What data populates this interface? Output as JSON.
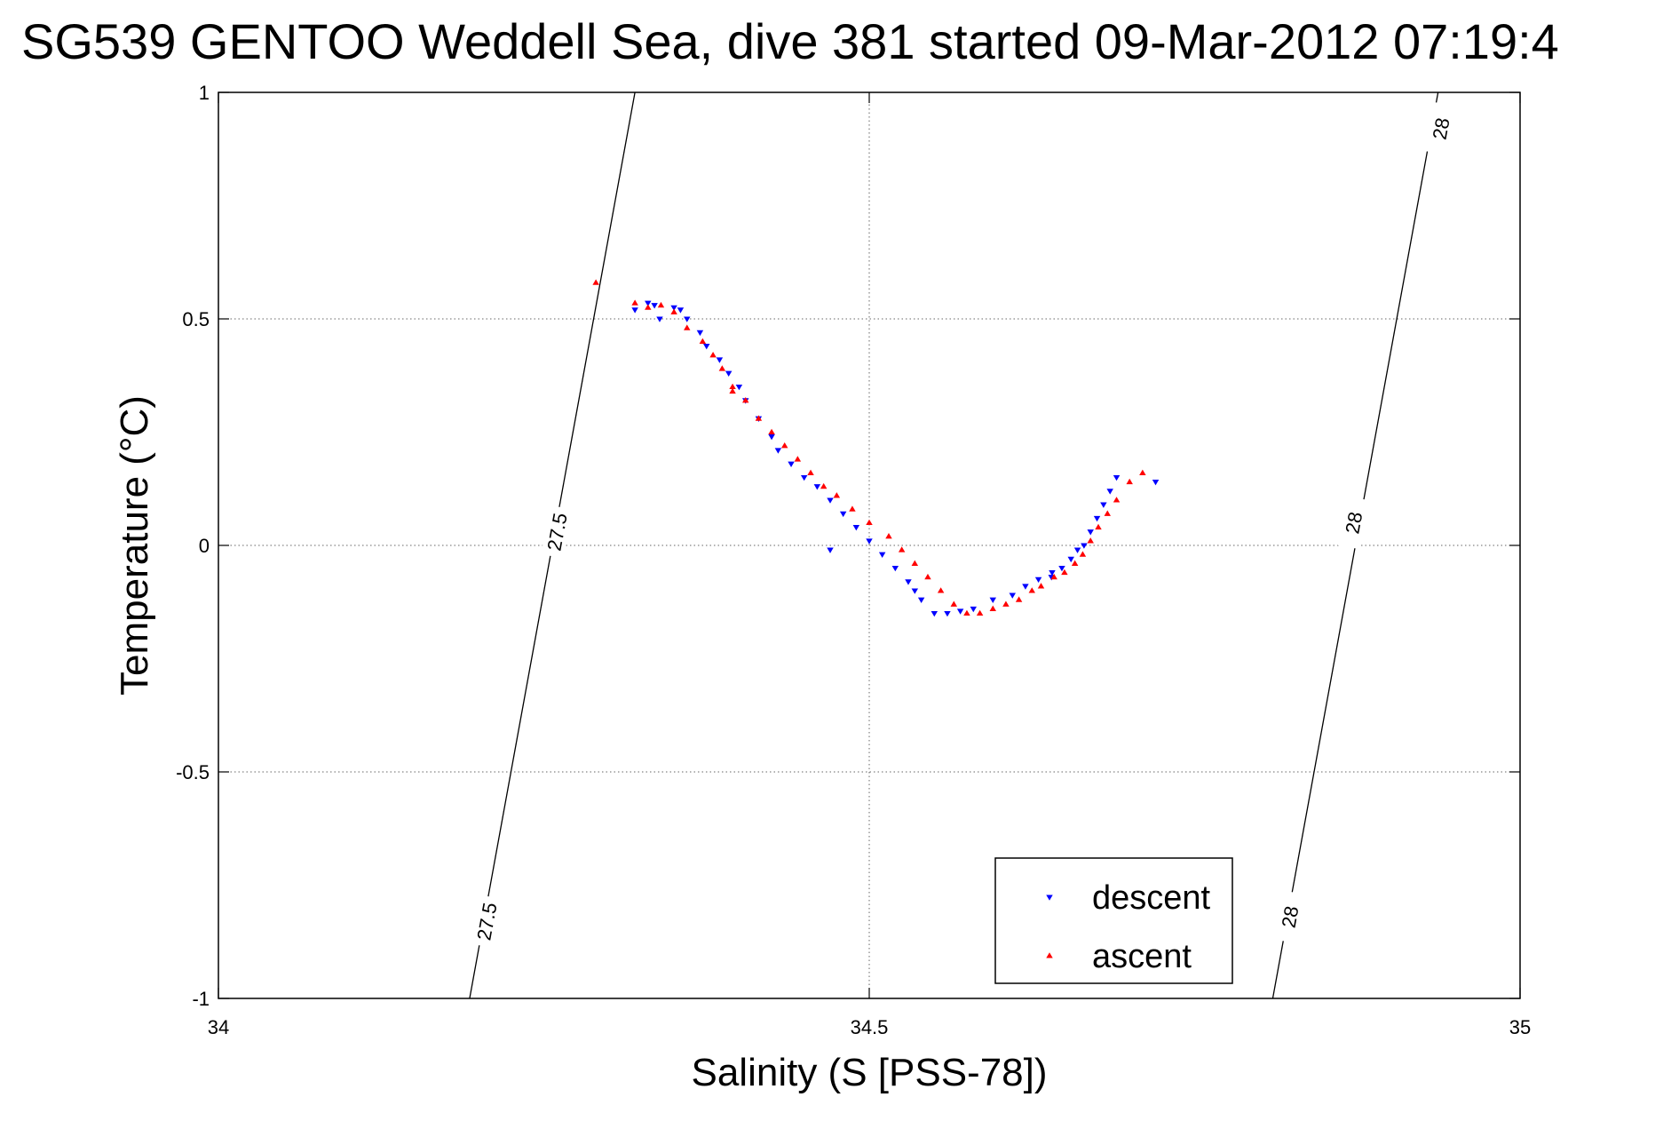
{
  "chart_data": {
    "type": "scatter",
    "title": "SG539 GENTOO Weddell Sea, dive 381 started 09-Mar-2012 07:19:4",
    "xlabel": "Salinity (S [PSS-78])",
    "ylabel": "Temperature (°C)",
    "xlim": [
      34,
      35
    ],
    "ylim": [
      -1,
      1
    ],
    "x_ticks": [
      34,
      34.5,
      35
    ],
    "x_tick_labels": [
      "34",
      "34.5",
      "35"
    ],
    "y_ticks": [
      -1,
      -0.5,
      0,
      0.5,
      1
    ],
    "y_tick_labels": [
      "-1",
      "-0.5",
      "0",
      "0.5",
      "1"
    ],
    "grid": true,
    "legend_position": "bottom-right",
    "isopycnals": [
      {
        "label": "27.5",
        "points": [
          [
            34.193,
            -1.0
          ],
          [
            34.322,
            0.45
          ],
          [
            34.359,
            0.85
          ],
          [
            34.32,
            1.0
          ]
        ],
        "line": [
          [
            34.193,
            -1.0
          ],
          [
            34.32,
            1.0
          ]
        ],
        "label_positions": [
          [
            34.206,
            -0.83
          ],
          [
            34.26,
            0.03
          ]
        ]
      },
      {
        "label": "28",
        "line": [
          [
            34.81,
            -1.0
          ],
          [
            34.937,
            1.0
          ]
        ],
        "label_positions": [
          [
            34.823,
            -0.82
          ],
          [
            34.872,
            0.05
          ],
          [
            34.939,
            0.92
          ]
        ]
      }
    ],
    "series": [
      {
        "name": "descent",
        "color": "#0000ff",
        "marker": "triangle-down",
        "x": [
          34.32,
          34.335,
          34.35,
          34.36,
          34.37,
          34.375,
          34.385,
          34.392,
          34.4,
          34.405,
          34.415,
          34.425,
          34.43,
          34.44,
          34.45,
          34.46,
          34.47,
          34.48,
          34.49,
          34.5,
          34.51,
          34.52,
          34.53,
          34.535,
          34.54,
          34.55,
          34.56,
          34.57,
          34.58,
          34.595,
          34.61,
          34.62,
          34.63,
          34.64,
          34.6405,
          34.648,
          34.655,
          34.66,
          34.665,
          34.67,
          34.675,
          34.68,
          34.685,
          34.69,
          34.72,
          34.47,
          34.355,
          34.33,
          34.339
        ],
        "y": [
          0.52,
          0.53,
          0.525,
          0.5,
          0.47,
          0.44,
          0.41,
          0.38,
          0.35,
          0.32,
          0.28,
          0.24,
          0.21,
          0.18,
          0.15,
          0.13,
          0.1,
          0.07,
          0.04,
          0.01,
          -0.02,
          -0.05,
          -0.08,
          -0.1,
          -0.12,
          -0.15,
          -0.15,
          -0.145,
          -0.14,
          -0.12,
          -0.11,
          -0.09,
          -0.075,
          -0.07,
          -0.06,
          -0.05,
          -0.03,
          -0.01,
          0.0,
          0.03,
          0.06,
          0.09,
          0.12,
          0.15,
          0.14,
          -0.01,
          0.52,
          0.535,
          0.5
        ]
      },
      {
        "name": "ascent",
        "color": "#ff0000",
        "marker": "triangle-up",
        "x": [
          34.33,
          34.34,
          34.35,
          34.36,
          34.372,
          34.38,
          34.387,
          34.395,
          34.405,
          34.415,
          34.425,
          34.435,
          34.445,
          34.455,
          34.465,
          34.475,
          34.487,
          34.5,
          34.515,
          34.525,
          34.535,
          34.545,
          34.555,
          34.565,
          34.575,
          34.585,
          34.595,
          34.605,
          34.615,
          34.625,
          34.632,
          34.642,
          34.65,
          34.658,
          34.664,
          34.67,
          34.676,
          34.683,
          34.69,
          34.7,
          34.71,
          34.29,
          34.32,
          34.395
        ],
        "y": [
          0.525,
          0.53,
          0.515,
          0.48,
          0.45,
          0.42,
          0.39,
          0.35,
          0.32,
          0.28,
          0.25,
          0.22,
          0.19,
          0.16,
          0.13,
          0.11,
          0.08,
          0.05,
          0.02,
          -0.01,
          -0.04,
          -0.07,
          -0.1,
          -0.13,
          -0.15,
          -0.15,
          -0.14,
          -0.13,
          -0.12,
          -0.1,
          -0.09,
          -0.07,
          -0.06,
          -0.04,
          -0.02,
          0.01,
          0.04,
          0.07,
          0.1,
          0.14,
          0.16,
          0.58,
          0.535,
          0.34
        ]
      }
    ]
  }
}
